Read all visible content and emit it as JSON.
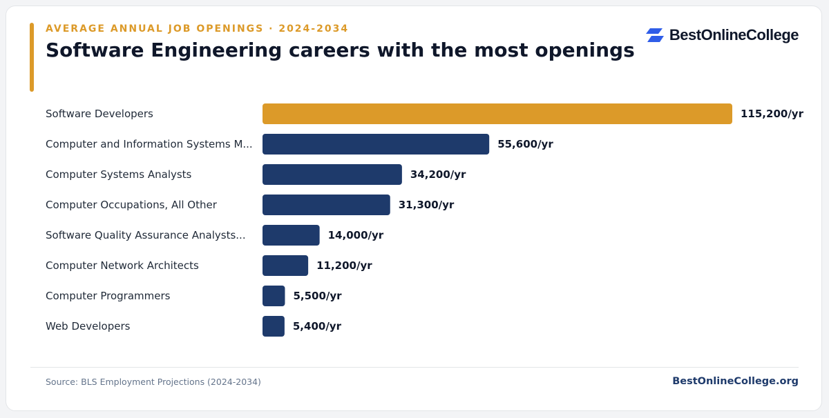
{
  "header": {
    "eyebrow": "AVERAGE ANNUAL JOB OPENINGS · 2024-2034",
    "title": "Software Engineering careers with the most openings",
    "logo_text": "BestOnlineCollege"
  },
  "footer": {
    "source": "Source: BLS Employment Projections (2024-2034)",
    "site": "BestOnlineCollege.org"
  },
  "colors": {
    "highlight": "#dc9a29",
    "bar": "#1e3a6b",
    "label": "#1f2937",
    "value": "#0f172a"
  },
  "chart_data": {
    "type": "bar",
    "orientation": "horizontal",
    "categories": [
      "Software Developers",
      "Computer and Information Systems M...",
      "Computer Systems Analysts",
      "Computer Occupations, All Other",
      "Software Quality Assurance Analysts...",
      "Computer Network Architects",
      "Computer Programmers",
      "Web Developers"
    ],
    "values": [
      115200,
      55600,
      34200,
      31300,
      14000,
      11200,
      5500,
      5400
    ],
    "value_labels": [
      "115,200/yr",
      "55,600/yr",
      "34,200/yr",
      "31,300/yr",
      "14,000/yr",
      "11,200/yr",
      "5,500/yr",
      "5,400/yr"
    ],
    "highlight_index": 0,
    "xlim": [
      0,
      115200
    ],
    "grid": false,
    "legend": false
  }
}
